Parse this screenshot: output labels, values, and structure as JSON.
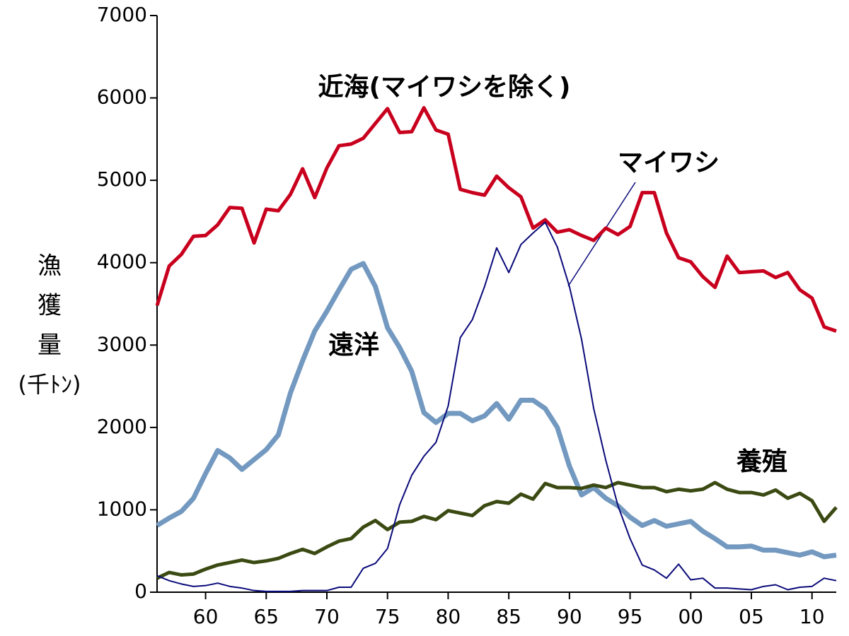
{
  "chart_data": {
    "type": "line",
    "y_label_lines": [
      "漁",
      "獲",
      "量",
      "(千ﾄﾝ)"
    ],
    "x": [
      1956,
      1957,
      1958,
      1959,
      1960,
      1961,
      1962,
      1963,
      1964,
      1965,
      1966,
      1967,
      1968,
      1969,
      1970,
      1971,
      1972,
      1973,
      1974,
      1975,
      1976,
      1977,
      1978,
      1979,
      1980,
      1981,
      1982,
      1983,
      1984,
      1985,
      1986,
      1987,
      1988,
      1989,
      1990,
      1991,
      1992,
      1993,
      1994,
      1995,
      1996,
      1997,
      1998,
      1999,
      2000,
      2001,
      2002,
      2003,
      2004,
      2005,
      2006,
      2007,
      2008,
      2009,
      2010,
      2011,
      2012
    ],
    "xlim": [
      1956,
      2012
    ],
    "xticks": [
      {
        "value": 1960,
        "label": "60"
      },
      {
        "value": 1965,
        "label": "65"
      },
      {
        "value": 1970,
        "label": "70"
      },
      {
        "value": 1975,
        "label": "75"
      },
      {
        "value": 1980,
        "label": "80"
      },
      {
        "value": 1985,
        "label": "85"
      },
      {
        "value": 1990,
        "label": "90"
      },
      {
        "value": 1995,
        "label": "95"
      },
      {
        "value": 2000,
        "label": "00"
      },
      {
        "value": 2005,
        "label": "05"
      },
      {
        "value": 2010,
        "label": "10"
      }
    ],
    "ylim": [
      0,
      7000
    ],
    "yticks": [
      0,
      1000,
      2000,
      3000,
      4000,
      5000,
      6000,
      7000
    ],
    "series": [
      {
        "name": "近海(マイワシを除く)",
        "color": "#c8001e",
        "values": [
          3480,
          3960,
          4100,
          4320,
          4330,
          4460,
          4670,
          4660,
          4240,
          4650,
          4630,
          4830,
          5140,
          4790,
          5150,
          5420,
          5440,
          5510,
          5690,
          5870,
          5580,
          5590,
          5880,
          5610,
          5560,
          4890,
          4850,
          4820,
          5050,
          4910,
          4800,
          4420,
          4520,
          4370,
          4400,
          4330,
          4270,
          4420,
          4340,
          4440,
          4850,
          4850,
          4360,
          4060,
          4010,
          3830,
          3700,
          4080,
          3880,
          3890,
          3900,
          3820,
          3880,
          3670,
          3570,
          3220,
          3170
        ]
      },
      {
        "name": "遠洋",
        "color": "#7399c0",
        "values": [
          810,
          900,
          980,
          1140,
          1440,
          1720,
          1630,
          1490,
          1610,
          1730,
          1910,
          2420,
          2810,
          3170,
          3410,
          3670,
          3920,
          3990,
          3710,
          3210,
          2970,
          2680,
          2180,
          2060,
          2170,
          2170,
          2080,
          2140,
          2290,
          2100,
          2330,
          2330,
          2230,
          2000,
          1530,
          1180,
          1270,
          1140,
          1050,
          910,
          810,
          870,
          800,
          830,
          860,
          740,
          650,
          550,
          550,
          560,
          510,
          510,
          480,
          450,
          490,
          430,
          450
        ]
      },
      {
        "name": "マイワシ",
        "color": "#0a0a7a",
        "values": [
          200,
          140,
          100,
          70,
          80,
          110,
          70,
          50,
          20,
          10,
          10,
          10,
          20,
          20,
          20,
          60,
          60,
          290,
          350,
          530,
          1060,
          1420,
          1650,
          1820,
          2260,
          3090,
          3310,
          3710,
          4180,
          3880,
          4220,
          4360,
          4490,
          4190,
          3710,
          3070,
          2230,
          1600,
          1050,
          650,
          330,
          270,
          170,
          340,
          150,
          170,
          50,
          50,
          40,
          30,
          70,
          90,
          30,
          60,
          70,
          170,
          140
        ]
      },
      {
        "name": "養殖",
        "color": "#3b4a12",
        "values": [
          170,
          240,
          210,
          220,
          280,
          330,
          360,
          390,
          360,
          380,
          410,
          470,
          520,
          470,
          550,
          620,
          650,
          790,
          870,
          760,
          850,
          860,
          920,
          880,
          990,
          960,
          930,
          1050,
          1100,
          1080,
          1190,
          1130,
          1320,
          1270,
          1270,
          1260,
          1300,
          1270,
          1330,
          1300,
          1270,
          1270,
          1220,
          1250,
          1230,
          1250,
          1330,
          1250,
          1210,
          1210,
          1180,
          1240,
          1140,
          1200,
          1110,
          860,
          1030
        ]
      }
    ]
  }
}
